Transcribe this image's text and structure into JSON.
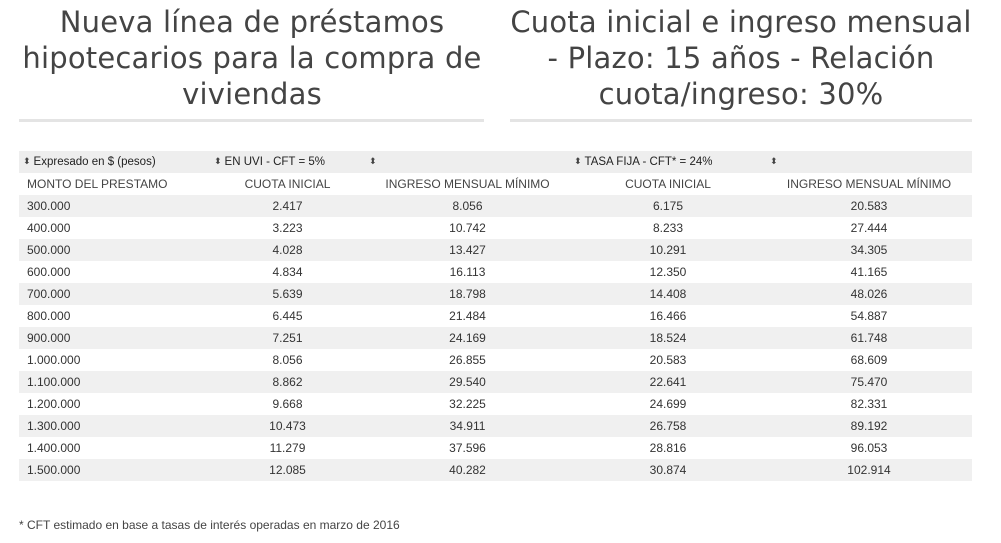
{
  "titles": {
    "left": "Nueva línea de préstamos hipotecarios para la compra de viviendas",
    "right": "Cuota inicial e ingreso mensual - Plazo: 15 años - Relación cuota/ingreso: 30%"
  },
  "sort_row": [
    "Expresado en $ (pesos)",
    "EN UVI - CFT = 5%",
    "",
    "TASA FIJA - CFT* = 24%",
    ""
  ],
  "columns": [
    "MONTO DEL PRESTAMO",
    "CUOTA INICIAL",
    "INGRESO MENSUAL MÍNIMO",
    "CUOTA INICIAL",
    "INGRESO MENSUAL MÍNIMO"
  ],
  "rows": [
    [
      "300.000",
      "2.417",
      "8.056",
      "6.175",
      "20.583"
    ],
    [
      "400.000",
      "3.223",
      "10.742",
      "8.233",
      "27.444"
    ],
    [
      "500.000",
      "4.028",
      "13.427",
      "10.291",
      "34.305"
    ],
    [
      "600.000",
      "4.834",
      "16.113",
      "12.350",
      "41.165"
    ],
    [
      "700.000",
      "5.639",
      "18.798",
      "14.408",
      "48.026"
    ],
    [
      "800.000",
      "6.445",
      "21.484",
      "16.466",
      "54.887"
    ],
    [
      "900.000",
      "7.251",
      "24.169",
      "18.524",
      "61.748"
    ],
    [
      "1.000.000",
      "8.056",
      "26.855",
      "20.583",
      "68.609"
    ],
    [
      "1.100.000",
      "8.862",
      "29.540",
      "22.641",
      "75.470"
    ],
    [
      "1.200.000",
      "9.668",
      "32.225",
      "24.699",
      "82.331"
    ],
    [
      "1.300.000",
      "10.473",
      "34.911",
      "26.758",
      "89.192"
    ],
    [
      "1.400.000",
      "11.279",
      "37.596",
      "28.816",
      "96.053"
    ],
    [
      "1.500.000",
      "12.085",
      "40.282",
      "30.874",
      "102.914"
    ]
  ],
  "footnote": "* CFT estimado en base a tasas de interés operadas en marzo de 2016",
  "colors": {
    "title": "#444444",
    "row_stripe": "#f0f0f0",
    "sort_row_bg": "#eeeeee",
    "rule": "#e4e4e4"
  }
}
